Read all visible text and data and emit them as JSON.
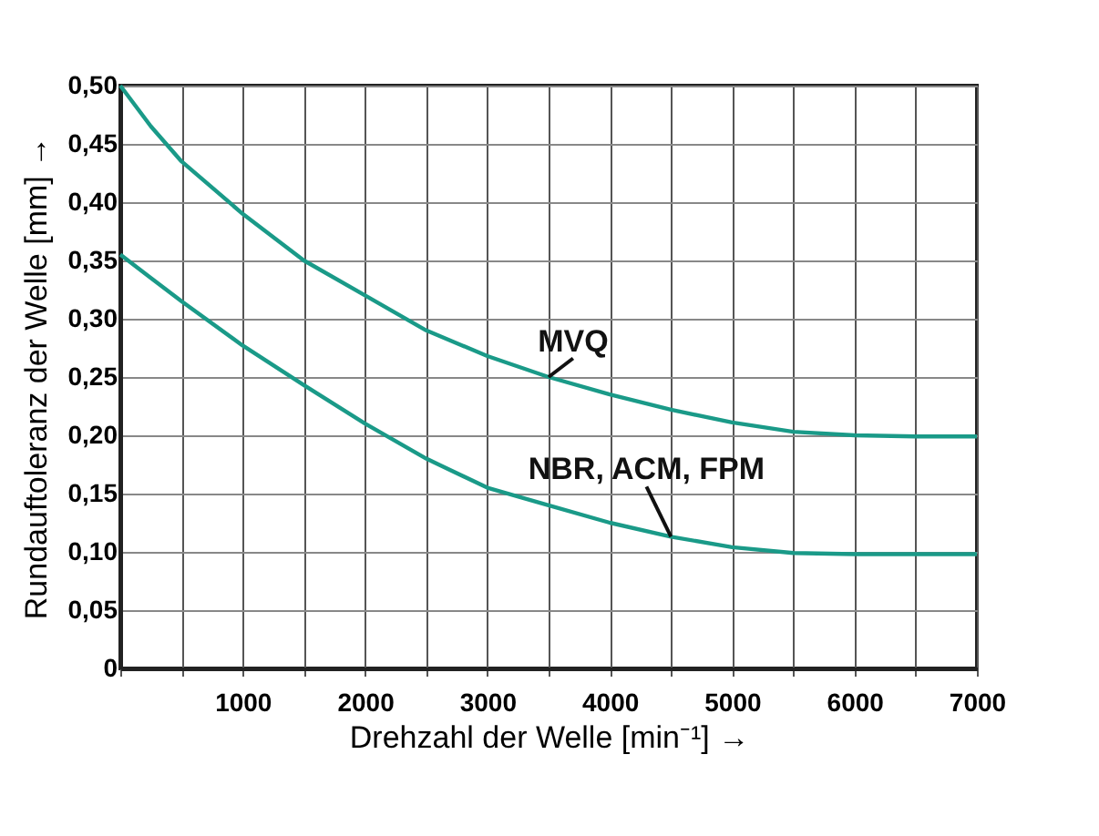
{
  "chart_data": {
    "type": "line",
    "xlabel": "Drehzahl der Welle [min⁻¹] →",
    "ylabel": "Rundauftoleranz der Welle [mm] →",
    "series": [
      {
        "name": "MVQ",
        "color": "#1a9a88",
        "x": [
          0,
          250,
          500,
          1000,
          1500,
          2000,
          2500,
          3000,
          3500,
          4000,
          4500,
          5000,
          5500,
          6000,
          6500,
          7000
        ],
        "values": [
          0.5,
          0.465,
          0.435,
          0.39,
          0.35,
          0.32,
          0.29,
          0.268,
          0.25,
          0.235,
          0.222,
          0.211,
          0.203,
          0.2,
          0.199,
          0.199
        ]
      },
      {
        "name": "NBR, ACM, FPM",
        "color": "#1a9a88",
        "x": [
          0,
          250,
          500,
          1000,
          1500,
          2000,
          2500,
          3000,
          3500,
          4000,
          4500,
          5000,
          5500,
          6000,
          6500,
          7000
        ],
        "values": [
          0.355,
          0.335,
          0.315,
          0.277,
          0.243,
          0.21,
          0.18,
          0.155,
          0.14,
          0.125,
          0.113,
          0.104,
          0.099,
          0.098,
          0.098,
          0.098
        ]
      }
    ],
    "xlim": [
      0,
      7000
    ],
    "xticks": [
      {
        "value": 0,
        "label": null
      },
      {
        "value": 500,
        "label": null
      },
      1000,
      {
        "value": 1500,
        "label": null
      },
      2000,
      {
        "value": 2500,
        "label": null
      },
      3000,
      {
        "value": 3500,
        "label": null
      },
      4000,
      {
        "value": 4500,
        "label": null
      },
      5000,
      {
        "value": 5500,
        "label": null
      },
      6000,
      {
        "value": 6500,
        "label": null
      },
      7000
    ],
    "ylim": [
      0,
      0.5
    ],
    "yticks": [
      {
        "value": 0,
        "label": "0"
      },
      {
        "value": 0.05,
        "label": "0,05"
      },
      {
        "value": 0.1,
        "label": "0,10"
      },
      {
        "value": 0.15,
        "label": "0,15"
      },
      {
        "value": 0.2,
        "label": "0,20"
      },
      {
        "value": 0.25,
        "label": "0,25"
      },
      {
        "value": 0.3,
        "label": "0,30"
      },
      {
        "value": 0.35,
        "label": "0,35"
      },
      {
        "value": 0.4,
        "label": "0,40"
      },
      {
        "value": 0.45,
        "label": "0,45"
      },
      {
        "value": 0.5,
        "label": "0,50"
      }
    ],
    "grid": true,
    "marker": "none",
    "line_style": "solid"
  }
}
